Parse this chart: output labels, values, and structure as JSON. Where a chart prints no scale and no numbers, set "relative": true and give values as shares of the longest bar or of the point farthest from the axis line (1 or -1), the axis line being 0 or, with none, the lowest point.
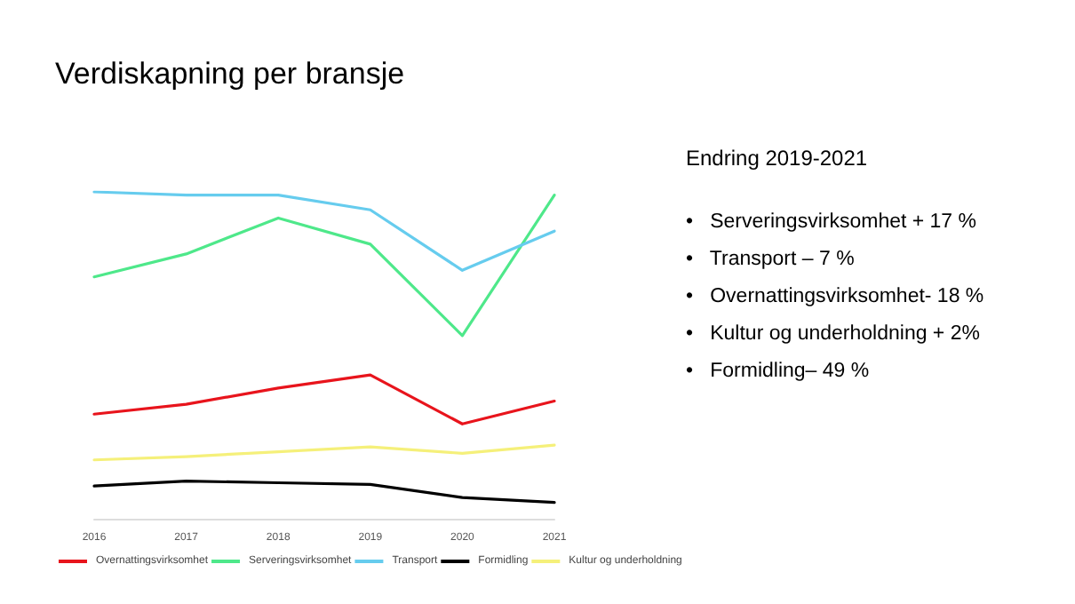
{
  "chart_data": {
    "type": "line",
    "title": "Verdiskapning per bransje",
    "relative": true,
    "legend": "bottom",
    "marker": "none",
    "line_style": "solid",
    "grid": false,
    "categories": [
      "2016",
      "2017",
      "2018",
      "2019",
      "2020",
      "2021"
    ],
    "series": [
      {
        "name": "Overnattingsvirksomhet",
        "color": "#e8141c",
        "values": [
          0.32,
          0.35,
          0.4,
          0.44,
          0.29,
          0.36
        ]
      },
      {
        "name": "Serveringsvirksomhet",
        "color": "#4ee88a",
        "values": [
          0.74,
          0.81,
          0.92,
          0.84,
          0.56,
          0.99
        ]
      },
      {
        "name": "Transport",
        "color": "#66ccee",
        "values": [
          1,
          0.99,
          0.99,
          0.945,
          0.76,
          0.88
        ]
      },
      {
        "name": "Formidling",
        "color": "#000000",
        "values": [
          0.1,
          0.115,
          0.11,
          0.105,
          0.065,
          0.05
        ]
      },
      {
        "name": "Kultur og underholdning",
        "color": "#f5f07a",
        "values": [
          0.18,
          0.19,
          0.205,
          0.22,
          0.2,
          0.225
        ]
      }
    ],
    "annotations": [
      "Endring 2019-2021",
      "•   Serveringsvirksomhet + 17 %",
      "•   Transport – 7 %",
      "•   Overnattingsvirksomhet- 18 %",
      "•   Kultur og underholdning + 2%",
      "•   Formidling– 49 %"
    ]
  }
}
